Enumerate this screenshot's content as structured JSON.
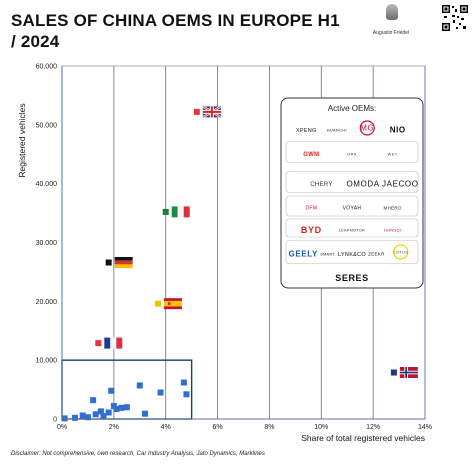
{
  "title": "SALES OF CHINA OEMS IN EUROPE H1 / 2024",
  "author": {
    "name": "Augustin Friedel",
    "avatar_icon": "person-avatar-icon",
    "qr_icon": "qr-code-icon"
  },
  "disclaimer": "Disclaimer: Not comprehensive, own research, Car Industry Analysis, Jato Dynamics, Marklines",
  "chart_data": {
    "type": "scatter",
    "title": "",
    "xlabel": "Share of total registered vehicles",
    "ylabel": "Registered vehicles",
    "xlim": [
      0,
      14
    ],
    "ylim": [
      0,
      60000
    ],
    "x_ticks": [
      0,
      2,
      4,
      6,
      8,
      10,
      12,
      14
    ],
    "x_tick_labels": [
      "0%",
      "2%",
      "4%",
      "6%",
      "8%",
      "10%",
      "12%",
      "14%"
    ],
    "y_ticks": [
      0,
      10000,
      20000,
      30000,
      40000,
      50000,
      60000
    ],
    "y_tick_labels": [
      "0",
      "10.000",
      "20.000",
      "30.000",
      "40.000",
      "50.000",
      "60.000"
    ],
    "grid": "vertical",
    "highlighted_points": [
      {
        "country": "United Kingdom",
        "flag_icon": "uk-flag-icon",
        "x": 5.2,
        "y": 52200,
        "color": "#e8343d"
      },
      {
        "country": "Italy",
        "flag_icon": "italy-flag-icon",
        "x": 4.0,
        "y": 35200,
        "color": "#1e7a3c"
      },
      {
        "country": "Germany",
        "flag_icon": "germany-flag-icon",
        "x": 1.8,
        "y": 26600,
        "color": "#111111"
      },
      {
        "country": "Spain",
        "flag_icon": "spain-flag-icon",
        "x": 3.7,
        "y": 19600,
        "color": "#f2c100"
      },
      {
        "country": "France",
        "flag_icon": "france-flag-icon",
        "x": 1.4,
        "y": 12900,
        "color": "#e8343d"
      },
      {
        "country": "Norway",
        "flag_icon": "norway-flag-icon",
        "x": 12.8,
        "y": 7900,
        "color": "#1f3b73"
      }
    ],
    "other_points_color": "#2e6fd1",
    "other_points": [
      {
        "x": 0.5,
        "y": 200
      },
      {
        "x": 0.8,
        "y": 600
      },
      {
        "x": 1.0,
        "y": 300
      },
      {
        "x": 1.3,
        "y": 800
      },
      {
        "x": 1.5,
        "y": 1300
      },
      {
        "x": 1.2,
        "y": 3200
      },
      {
        "x": 1.6,
        "y": 500
      },
      {
        "x": 1.8,
        "y": 1100
      },
      {
        "x": 1.9,
        "y": 4800
      },
      {
        "x": 2.0,
        "y": 2200
      },
      {
        "x": 2.1,
        "y": 1700
      },
      {
        "x": 2.3,
        "y": 1900
      },
      {
        "x": 2.5,
        "y": 2000
      },
      {
        "x": 3.0,
        "y": 5700
      },
      {
        "x": 3.2,
        "y": 900
      },
      {
        "x": 3.8,
        "y": 4500
      },
      {
        "x": 4.7,
        "y": 6200
      },
      {
        "x": 4.8,
        "y": 4200
      },
      {
        "x": 0.1,
        "y": 100
      }
    ],
    "zoom_box": {
      "x0": 0,
      "x1": 5,
      "y0": 0,
      "y1": 10000,
      "color": "#1f3b73"
    },
    "legend": {
      "position": "top-right",
      "title": "Active OEMs:",
      "rows": [
        [
          "XPENG",
          "HUANCHI",
          "MG",
          "NIO"
        ],
        [
          "GWM",
          "ORA",
          "WEY"
        ],
        [
          "CHERY",
          "OMODA JAECOO"
        ],
        [
          "DFM",
          "VOYAH",
          "MHERO"
        ],
        [
          "BYD",
          "LEAPMOTOR",
          "HONGQI"
        ],
        [
          "GEELY",
          "SMART",
          "LYNK&CO",
          "ZEEKR",
          "LOTUS"
        ],
        [
          "SERES"
        ]
      ]
    }
  }
}
